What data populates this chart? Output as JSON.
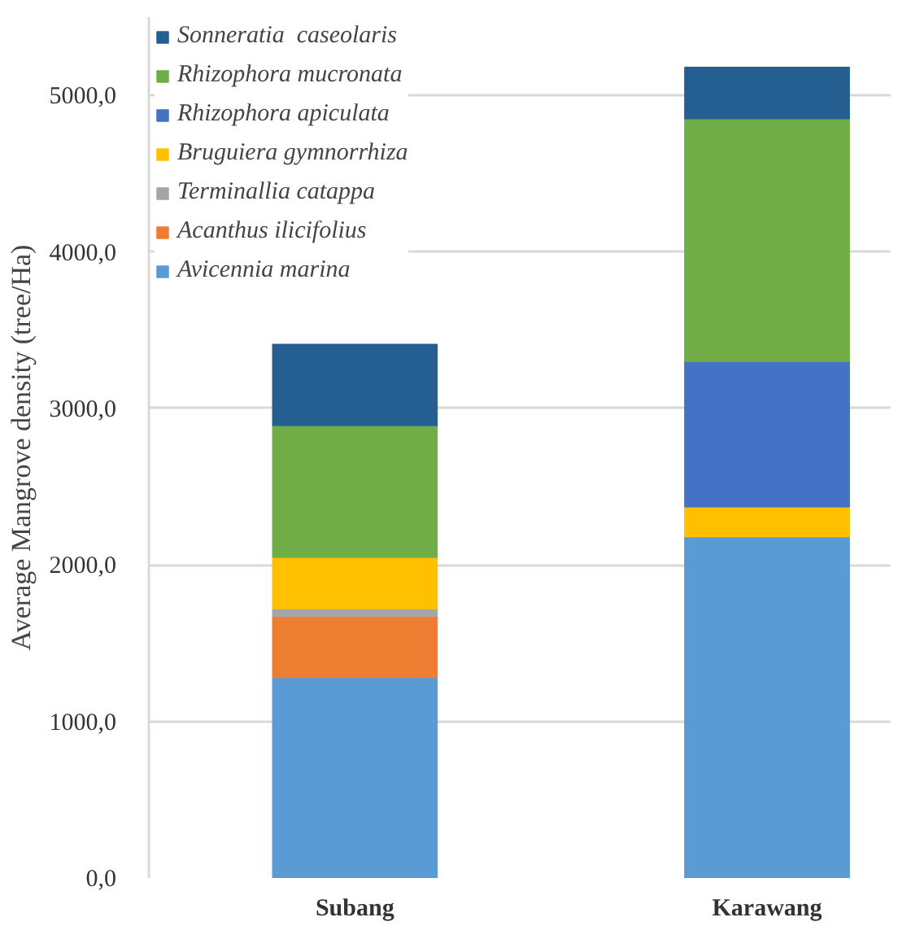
{
  "chart_data": {
    "type": "bar",
    "stacked": true,
    "ylabel": "Average Mangrove density (tree/Ha)",
    "categories": [
      "Subang",
      "Karawang"
    ],
    "series": [
      {
        "name": "Avicennia marina",
        "color": "#5b9bd5",
        "values": [
          1280,
          2180
        ]
      },
      {
        "name": "Acanthus ilicifolius",
        "color": "#ed7d31",
        "values": [
          390,
          0
        ]
      },
      {
        "name": "Terminallia catappa",
        "color": "#a5a5a5",
        "values": [
          50,
          0
        ]
      },
      {
        "name": "Bruguiera gymnorrhiza",
        "color": "#ffc000",
        "values": [
          330,
          190
        ]
      },
      {
        "name": "Rhizophora apiculata",
        "color": "#4472c4",
        "values": [
          0,
          930
        ]
      },
      {
        "name": "Rhizophora mucronata",
        "color": "#70ad47",
        "values": [
          840,
          1550
        ]
      },
      {
        "name": "Sonneratia  caseolaris",
        "color": "#255e91",
        "values": [
          520,
          330
        ]
      }
    ],
    "yticks": [
      {
        "value": 0,
        "label": "0,0"
      },
      {
        "value": 1000,
        "label": "1000,0"
      },
      {
        "value": 2000,
        "label": "2000,0"
      },
      {
        "value": 3000,
        "label": "3000,0"
      },
      {
        "value": 4000,
        "label": "4000,0"
      },
      {
        "value": 5000,
        "label": "5000,0"
      }
    ],
    "ylim": [
      0,
      5500
    ],
    "grid": "y",
    "legend": "top left"
  }
}
